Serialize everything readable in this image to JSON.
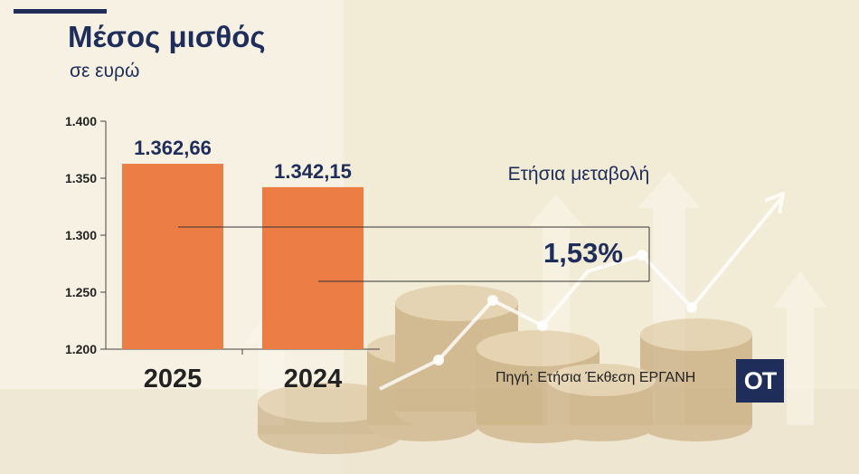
{
  "colors": {
    "navy": "#1e2d5a",
    "bar": "#ec7d45",
    "axis": "#444444",
    "connector": "#333333"
  },
  "header": {
    "title": "Μέσος μισθός",
    "subtitle": "σε ευρώ"
  },
  "annotation": {
    "label": "Ετήσια μεταβολή",
    "value": "1,53%"
  },
  "footer": {
    "source": "Πηγή: Ετήσια Έκθεση ΕΡΓΑΝΗ",
    "logo_text": "ΟΤ"
  },
  "chart_data": {
    "type": "bar",
    "title": "Μέσος μισθός",
    "ylabel": "σε ευρώ",
    "categories": [
      "2025",
      "2024"
    ],
    "values": [
      1362.66,
      1342.15
    ],
    "value_labels": [
      "1.362,66",
      "1.342,15"
    ],
    "ylim": [
      1200,
      1400
    ],
    "yticks": [
      1200,
      1250,
      1300,
      1350,
      1400
    ],
    "ytick_labels": [
      "1.200",
      "1.250",
      "1.300",
      "1.350",
      "1.400"
    ],
    "grid": false,
    "legend": "none"
  }
}
